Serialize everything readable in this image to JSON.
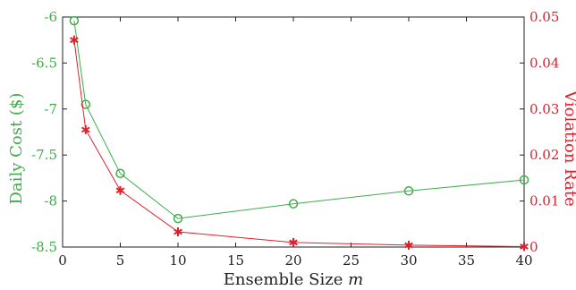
{
  "chart_data": {
    "type": "line",
    "xlabel": "Ensemble Size",
    "xlabel_var": "m",
    "ylabel": "Daily Cost ($)",
    "y2label": "Violation Rate",
    "xlim": [
      0,
      40
    ],
    "xticks": [
      0,
      5,
      10,
      15,
      20,
      25,
      30,
      35,
      40
    ],
    "ylim": [
      -8.5,
      -6
    ],
    "yticks": [
      -6,
      -6.5,
      -7,
      -7.5,
      -8,
      -8.5
    ],
    "y2lim": [
      0,
      0.05
    ],
    "y2ticks": [
      0,
      0.01,
      0.02,
      0.03,
      0.04,
      0.05
    ],
    "grid": false,
    "x": [
      1,
      2,
      5,
      10,
      20,
      30,
      40
    ],
    "series": [
      {
        "axis": "left",
        "marker": "circle",
        "color": "#3fae49",
        "values": [
          -6.04,
          -6.95,
          -7.7,
          -8.19,
          -8.03,
          -7.89,
          -7.77
        ]
      },
      {
        "axis": "right",
        "marker": "asterisk",
        "color": "#e0202c",
        "values": [
          0.045,
          0.0255,
          0.0123,
          0.0033,
          0.001,
          0.0004,
          0.0001
        ]
      }
    ]
  }
}
